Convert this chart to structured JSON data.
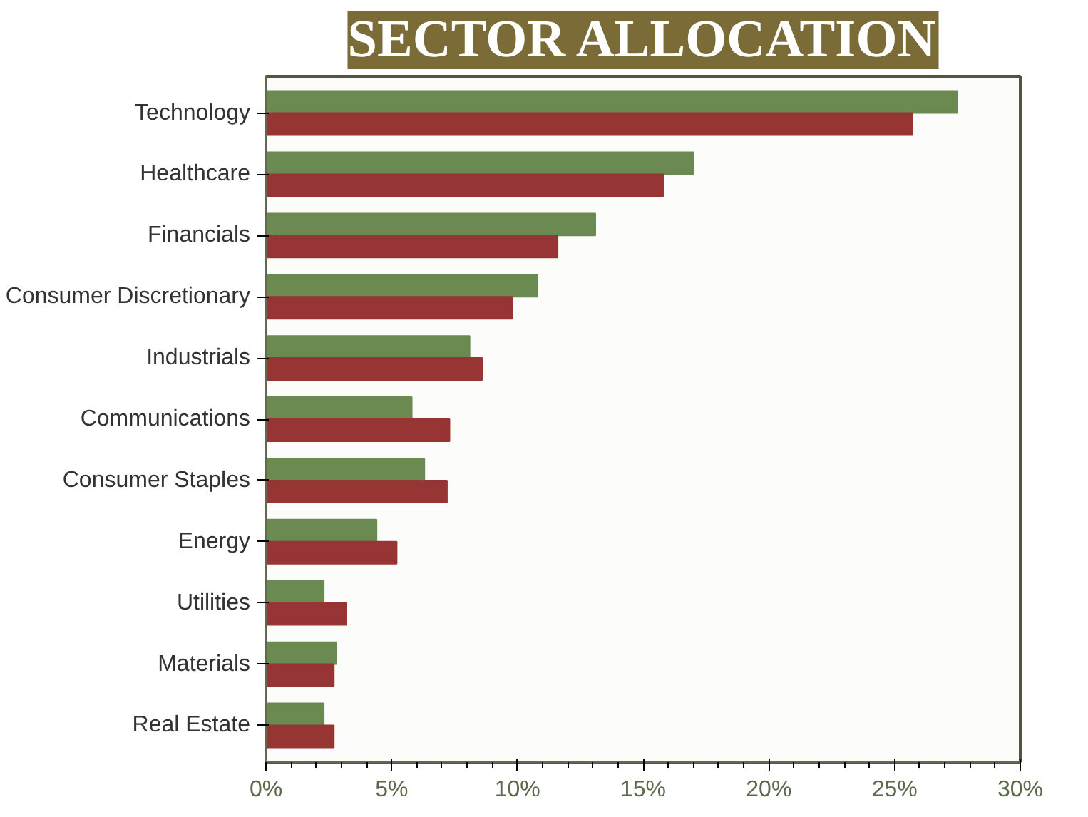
{
  "chart_data": {
    "type": "bar",
    "orientation": "horizontal",
    "title": "SECTOR ALLOCATION",
    "categories": [
      "Technology",
      "Healthcare",
      "Financials",
      "Consumer Discretionary",
      "Industrials",
      "Communications",
      "Consumer Staples",
      "Energy",
      "Utilities",
      "Materials",
      "Real Estate"
    ],
    "series": [
      {
        "color": "#6a8a52",
        "values": [
          27.5,
          17.0,
          13.1,
          10.8,
          8.1,
          5.8,
          6.3,
          4.4,
          2.3,
          2.8,
          2.3
        ]
      },
      {
        "color": "#973434",
        "values": [
          25.7,
          15.8,
          11.6,
          9.8,
          8.6,
          7.3,
          7.2,
          5.2,
          3.2,
          2.7,
          2.7
        ]
      }
    ],
    "xlim": [
      0,
      30
    ],
    "xticks": [
      {
        "value": 0,
        "label": "0%"
      },
      {
        "value": 5,
        "label": "5%"
      },
      {
        "value": 10,
        "label": "10%"
      },
      {
        "value": 15,
        "label": "15%"
      },
      {
        "value": 20,
        "label": "20%"
      },
      {
        "value": 25,
        "label": "25%"
      },
      {
        "value": 30,
        "label": "30%"
      }
    ],
    "grid": false
  }
}
